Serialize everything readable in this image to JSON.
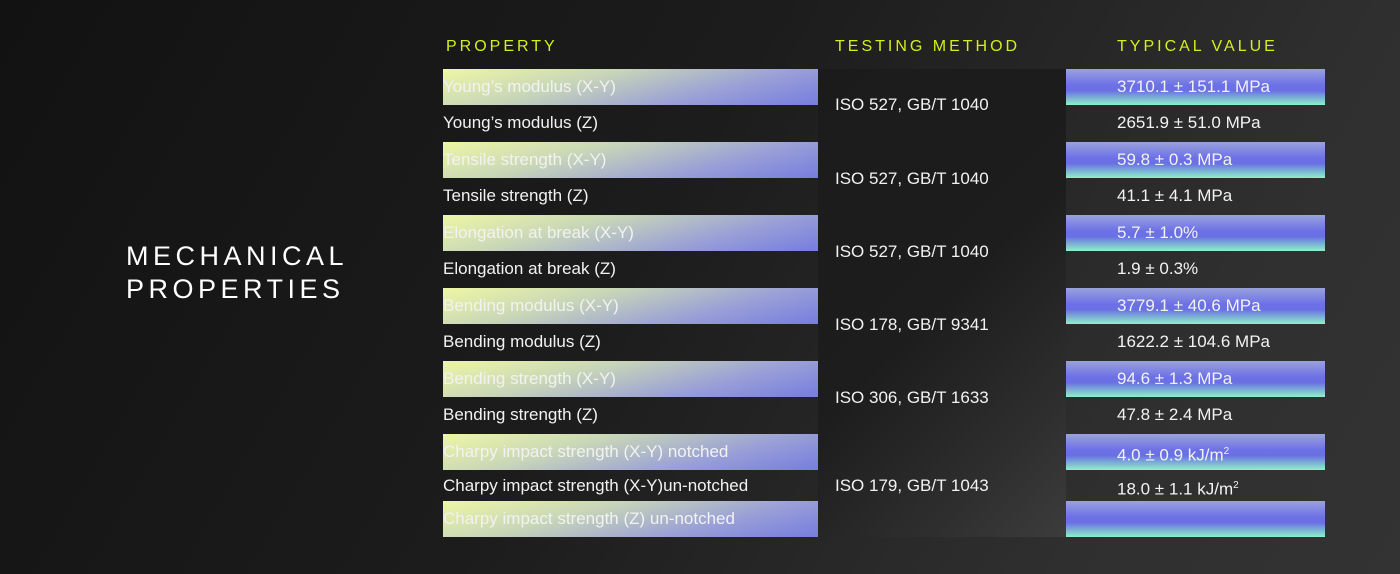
{
  "section_title": [
    "MECHANICAL",
    "PROPERTIES"
  ],
  "headers": {
    "property": "PROPERTY",
    "method": "TESTING METHOD",
    "value": "TYPICAL VALUE"
  },
  "colors": {
    "accent": "#d4ef1a",
    "gradient_yellow": "#eef7a4",
    "gradient_blue": "#6c70e6",
    "gradient_mint": "#8ef0c8"
  },
  "rows": [
    {
      "property": "Young’s modulus (X-Y)",
      "value": "3710.1 ± 151.1 MPa"
    },
    {
      "property": "Young’s modulus (Z)",
      "value": "2651.9 ± 51.0 MPa"
    },
    {
      "property": "Tensile strength (X-Y)",
      "value": "59.8 ± 0.3 MPa"
    },
    {
      "property": "Tensile strength (Z)",
      "value": "41.1 ± 4.1 MPa"
    },
    {
      "property": "Elongation at break (X-Y)",
      "value": "5.7 ±  1.0%"
    },
    {
      "property": "Elongation at break (Z)",
      "value": "1.9 ±  0.3%"
    },
    {
      "property": "Bending modulus (X-Y)",
      "value": "3779.1 ± 40.6 MPa"
    },
    {
      "property": "Bending modulus (Z)",
      "value": "1622.2 ± 104.6 MPa"
    },
    {
      "property": "Bending strength (X-Y)",
      "value": "94.6 ± 1.3 MPa"
    },
    {
      "property": "Bending strength (Z)",
      "value": "47.8 ± 2.4 MPa"
    },
    {
      "property": "Charpy impact strength (X-Y) notched",
      "value": "4.0  ± 0.9 kJ/m",
      "sup": "2"
    },
    {
      "property": "Charpy impact strength (X-Y)un-notched",
      "value": "18.0  ± 1.1 kJ/m",
      "sup": "2"
    },
    {
      "property": "Charpy impact strength (Z) un-notched",
      "value": ""
    }
  ],
  "methods": [
    "ISO 527, GB/T 1040",
    "ISO 527, GB/T 1040",
    "ISO 527, GB/T 1040",
    "ISO 178, GB/T 9341",
    "ISO 306, GB/T 1633",
    "ISO 179,  GB/T 1043"
  ]
}
